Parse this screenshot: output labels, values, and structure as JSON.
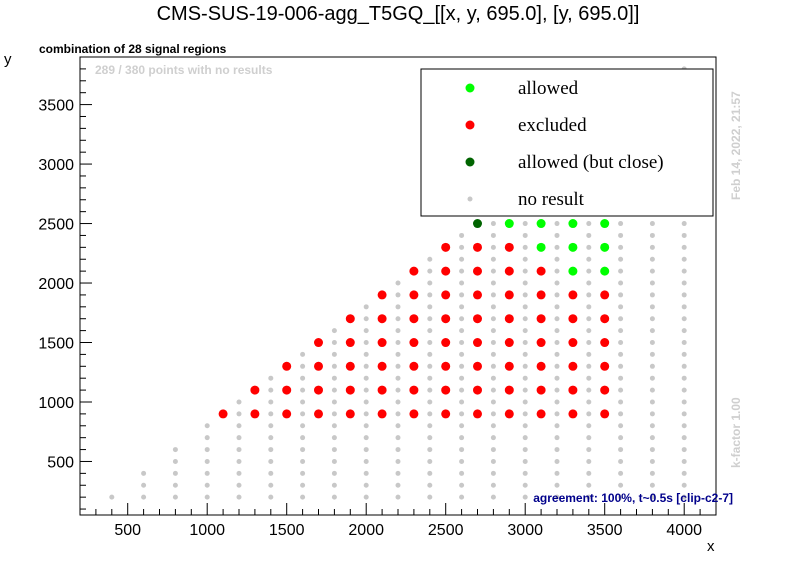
{
  "chart_data": {
    "type": "scatter",
    "title": "CMS-SUS-19-006-agg_T5GQ_[[x, y, 695.0], [y, 695.0]]",
    "xlabel": "x",
    "ylabel": "y",
    "xlim": [
      200,
      4200
    ],
    "ylim": [
      50,
      3900
    ],
    "x_ticks": [
      500,
      1000,
      1500,
      2000,
      2500,
      3000,
      3500,
      4000
    ],
    "y_ticks": [
      500,
      1000,
      1500,
      2000,
      2500,
      3000,
      3500
    ],
    "subtitle": "combination of 28 signal regions",
    "no_results_note": "289 / 380 points with no results",
    "timestamp": "Feb 14, 2022, 21:57",
    "kfactor": "k-factor 1.00",
    "agreement": "agreement: 100%, t~0.5s [clip-c2-7]",
    "legend": {
      "position": "top-right",
      "entries": [
        {
          "key": "allowed",
          "label": "allowed",
          "color": "#00ff00"
        },
        {
          "key": "excluded",
          "label": "excluded",
          "color": "#ff0000"
        },
        {
          "key": "allowed_close",
          "label": "allowed (but close)",
          "color": "#006400"
        },
        {
          "key": "no_result",
          "label": "no result",
          "color": "#c8c8c8"
        }
      ]
    },
    "grid": {
      "x_start": 400,
      "x_step": 200,
      "y_step": 100,
      "diagonal_offset": 200,
      "x_end": 4000
    },
    "colors": {
      "allowed": "#00ff00",
      "allowed_faded": "#b4f5b4",
      "excluded": "#ff0000",
      "allowed_close": "#006400",
      "no_result": "#c8c8c8",
      "frame": "#000000"
    },
    "excluded": [
      [
        1100,
        900
      ],
      [
        1300,
        900
      ],
      [
        1300,
        1100
      ],
      [
        1500,
        900
      ],
      [
        1500,
        1100
      ],
      [
        1500,
        1300
      ],
      [
        1700,
        900
      ],
      [
        1700,
        1100
      ],
      [
        1700,
        1300
      ],
      [
        1700,
        1500
      ],
      [
        1900,
        900
      ],
      [
        1900,
        1100
      ],
      [
        1900,
        1300
      ],
      [
        1900,
        1500
      ],
      [
        1900,
        1700
      ],
      [
        2100,
        900
      ],
      [
        2100,
        1100
      ],
      [
        2100,
        1300
      ],
      [
        2100,
        1500
      ],
      [
        2100,
        1700
      ],
      [
        2100,
        1900
      ],
      [
        2300,
        900
      ],
      [
        2300,
        1100
      ],
      [
        2300,
        1300
      ],
      [
        2300,
        1500
      ],
      [
        2300,
        1700
      ],
      [
        2300,
        1900
      ],
      [
        2300,
        2100
      ],
      [
        2500,
        900
      ],
      [
        2500,
        1100
      ],
      [
        2500,
        1300
      ],
      [
        2500,
        1500
      ],
      [
        2500,
        1700
      ],
      [
        2500,
        1900
      ],
      [
        2500,
        2100
      ],
      [
        2500,
        2300
      ],
      [
        2700,
        900
      ],
      [
        2700,
        1100
      ],
      [
        2700,
        1300
      ],
      [
        2700,
        1500
      ],
      [
        2700,
        1700
      ],
      [
        2700,
        1900
      ],
      [
        2700,
        2100
      ],
      [
        2700,
        2300
      ],
      [
        2900,
        900
      ],
      [
        2900,
        1100
      ],
      [
        2900,
        1300
      ],
      [
        2900,
        1500
      ],
      [
        2900,
        1700
      ],
      [
        2900,
        1900
      ],
      [
        2900,
        2100
      ],
      [
        2900,
        2300
      ],
      [
        3100,
        900
      ],
      [
        3100,
        1100
      ],
      [
        3100,
        1300
      ],
      [
        3100,
        1500
      ],
      [
        3100,
        1700
      ],
      [
        3100,
        1900
      ],
      [
        3100,
        2100
      ],
      [
        3300,
        900
      ],
      [
        3300,
        1100
      ],
      [
        3300,
        1300
      ],
      [
        3300,
        1500
      ],
      [
        3300,
        1700
      ],
      [
        3300,
        1900
      ],
      [
        3500,
        900
      ],
      [
        3500,
        1100
      ],
      [
        3500,
        1300
      ],
      [
        3500,
        1500
      ],
      [
        3500,
        1700
      ],
      [
        3500,
        1900
      ]
    ],
    "allowed_close": [
      [
        2700,
        2500
      ]
    ],
    "allowed": [
      [
        2900,
        2500
      ],
      [
        3100,
        2300
      ],
      [
        3100,
        2500
      ],
      [
        3300,
        2100
      ],
      [
        3300,
        2300
      ],
      [
        3300,
        2500
      ],
      [
        3500,
        2100
      ],
      [
        3500,
        2300
      ],
      [
        3500,
        2500
      ]
    ],
    "allowed_faded": [
      [
        2900,
        2700
      ],
      [
        3100,
        2700
      ],
      [
        3100,
        2900
      ],
      [
        3300,
        2900
      ],
      [
        3300,
        3100
      ],
      [
        3500,
        2700
      ],
      [
        3500,
        3300
      ]
    ]
  }
}
